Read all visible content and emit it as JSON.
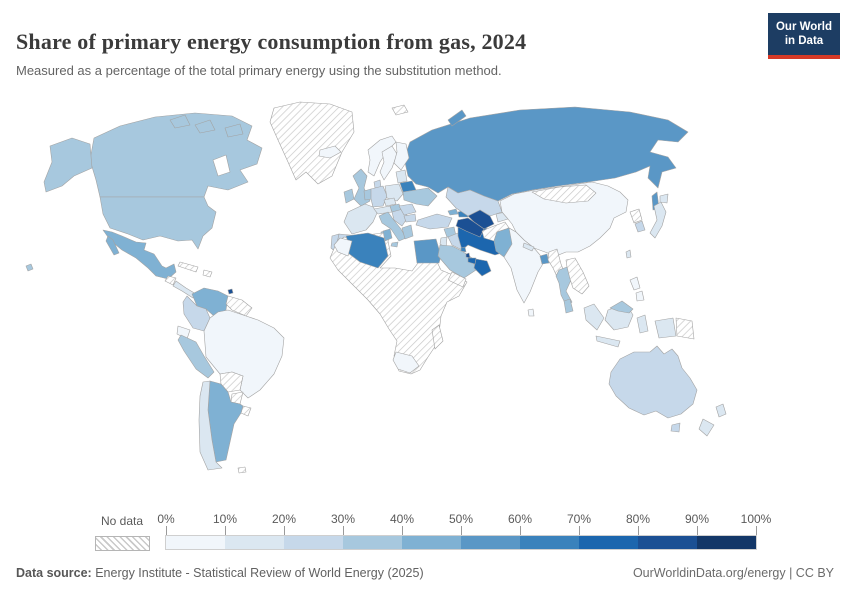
{
  "header": {
    "title": "Share of primary energy consumption from gas, 2024",
    "subtitle": "Measured as a percentage of the total primary energy using the substitution method.",
    "logo": {
      "line1": "Our World",
      "line2": "in Data",
      "bg_color": "#1d3d63",
      "accent_color": "#d73a27"
    }
  },
  "legend": {
    "no_data_label": "No data",
    "tick_labels": [
      "0%",
      "10%",
      "20%",
      "30%",
      "40%",
      "50%",
      "60%",
      "70%",
      "80%",
      "90%",
      "100%"
    ],
    "scale": [
      {
        "range": "0-10%",
        "color": "#f1f6fb"
      },
      {
        "range": "10-20%",
        "color": "#dbe7f1"
      },
      {
        "range": "20-30%",
        "color": "#c6d8ea"
      },
      {
        "range": "30-40%",
        "color": "#a7c8de"
      },
      {
        "range": "40-50%",
        "color": "#7fb1d3"
      },
      {
        "range": "50-60%",
        "color": "#5a97c6"
      },
      {
        "range": "60-70%",
        "color": "#3a82bc"
      },
      {
        "range": "70-80%",
        "color": "#1c66ae"
      },
      {
        "range": "80-90%",
        "color": "#1b5094"
      },
      {
        "range": "90-100%",
        "color": "#133768"
      }
    ]
  },
  "footer": {
    "data_source_label": "Data source:",
    "data_source": "Energy Institute - Statistical Review of World Energy (2025)",
    "link": "OurWorldinData.org/energy",
    "separator": "|",
    "license": "CC BY"
  },
  "chart_data": {
    "type": "heatmap",
    "subtype": "choropleth-world-map",
    "title": "Share of primary energy consumption from gas, 2024",
    "subtitle": "Measured as a percentage of the total primary energy using the substitution method.",
    "unit": "% of primary energy (substitution method)",
    "value_range": [
      0,
      100
    ],
    "legend_position": "bottom",
    "no_data_style": "diagonal-hatch",
    "countries": {
      "united-states": {
        "name": "United States",
        "range": "30-40%"
      },
      "canada": {
        "name": "Canada",
        "range": "30-40%"
      },
      "mexico": {
        "name": "Mexico",
        "range": "40-50%"
      },
      "greenland": {
        "name": "Greenland",
        "range": "No data"
      },
      "iceland": {
        "name": "Iceland",
        "range": "0-10%"
      },
      "central-america": {
        "name": "Costa Rica / Panama",
        "range": "10-20%"
      },
      "guatemala": {
        "name": "Guatemala",
        "range": "No data"
      },
      "cuba": {
        "name": "Cuba",
        "range": "No data"
      },
      "hispaniola": {
        "name": "Hispaniola",
        "range": "No data"
      },
      "trinidad-and-tobago": {
        "name": "Trinidad and Tobago",
        "range": "80-90%"
      },
      "venezuela": {
        "name": "Venezuela",
        "range": "40-50%"
      },
      "colombia": {
        "name": "Colombia",
        "range": "20-30%"
      },
      "guyanas": {
        "name": "Guyana / Suriname",
        "range": "No data"
      },
      "ecuador": {
        "name": "Ecuador",
        "range": "0-10%"
      },
      "peru": {
        "name": "Peru",
        "range": "30-40%"
      },
      "brazil": {
        "name": "Brazil",
        "range": "0-10%"
      },
      "bolivia": {
        "name": "Bolivia",
        "range": "No data"
      },
      "paraguay": {
        "name": "Paraguay",
        "range": "No data"
      },
      "uruguay": {
        "name": "Uruguay",
        "range": "No data"
      },
      "argentina": {
        "name": "Argentina",
        "range": "40-50%"
      },
      "chile": {
        "name": "Chile",
        "range": "10-20%"
      },
      "falkland-islands": {
        "name": "Falkland Islands",
        "range": "No data"
      },
      "norway": {
        "name": "Norway",
        "range": "0-10%"
      },
      "sweden": {
        "name": "Sweden",
        "range": "0-10%"
      },
      "finland": {
        "name": "Finland",
        "range": "0-10%"
      },
      "denmark": {
        "name": "Denmark",
        "range": "20-30%"
      },
      "united-kingdom": {
        "name": "United Kingdom",
        "range": "30-40%"
      },
      "ireland": {
        "name": "Ireland",
        "range": "30-40%"
      },
      "netherlands-belgium": {
        "name": "Netherlands / Belgium",
        "range": "30-40%"
      },
      "france": {
        "name": "France",
        "range": "10-20%"
      },
      "spain": {
        "name": "Spain",
        "range": "20-30%"
      },
      "portugal": {
        "name": "Portugal",
        "range": "20-30%"
      },
      "germany": {
        "name": "Germany",
        "range": "20-30%"
      },
      "poland": {
        "name": "Poland",
        "range": "10-20%"
      },
      "czechia": {
        "name": "Czechia",
        "range": "10-20%"
      },
      "austria-switzerland": {
        "name": "Austria / Switzerland",
        "range": "10-20%"
      },
      "italy": {
        "name": "Italy",
        "range": "30-40%"
      },
      "balkans": {
        "name": "Balkans",
        "range": "20-30%"
      },
      "hungary": {
        "name": "Hungary",
        "range": "30-40%"
      },
      "romania": {
        "name": "Romania",
        "range": "20-30%"
      },
      "bulgaria": {
        "name": "Bulgaria",
        "range": "20-30%"
      },
      "greece": {
        "name": "Greece",
        "range": "30-40%"
      },
      "baltic-states": {
        "name": "Baltic states",
        "range": "10-20%"
      },
      "belarus": {
        "name": "Belarus",
        "range": "60-70%"
      },
      "ukraine": {
        "name": "Ukraine",
        "range": "30-40%"
      },
      "russia": {
        "name": "Russia",
        "range": "50-60%"
      },
      "svalbard": {
        "name": "Svalbard",
        "range": "No data"
      },
      "turkey": {
        "name": "Turkey",
        "range": "20-30%"
      },
      "georgia": {
        "name": "Georgia",
        "range": "40-50%"
      },
      "azerbaijan": {
        "name": "Azerbaijan",
        "range": "60-70%"
      },
      "syria": {
        "name": "Syria",
        "range": "30-40%"
      },
      "israel-jordan": {
        "name": "Israel / Jordan",
        "range": "10-20%"
      },
      "iraq": {
        "name": "Iraq",
        "range": "20-30%"
      },
      "iran": {
        "name": "Iran",
        "range": "70-80%"
      },
      "saudi-arabia": {
        "name": "Saudi Arabia",
        "range": "30-40%"
      },
      "yemen": {
        "name": "Yemen",
        "range": "No data"
      },
      "oman": {
        "name": "Oman",
        "range": "70-80%"
      },
      "uae": {
        "name": "United Arab Emirates",
        "range": "70-80%"
      },
      "qatar": {
        "name": "Qatar",
        "range": "80-90%"
      },
      "kuwait": {
        "name": "Kuwait",
        "range": "60-70%"
      },
      "kazakhstan": {
        "name": "Kazakhstan",
        "range": "20-30%"
      },
      "uzbekistan": {
        "name": "Uzbekistan",
        "range": "80-90%"
      },
      "turkmenistan": {
        "name": "Turkmenistan",
        "range": "80-90%"
      },
      "kyrgyzstan": {
        "name": "Kyrgyzstan",
        "range": "10-20%"
      },
      "afghanistan": {
        "name": "Afghanistan",
        "range": "No data"
      },
      "pakistan": {
        "name": "Pakistan",
        "range": "40-50%"
      },
      "india": {
        "name": "India",
        "range": "0-10%"
      },
      "sri-lanka": {
        "name": "Sri Lanka",
        "range": "0-10%"
      },
      "nepal": {
        "name": "Nepal",
        "range": "10-20%"
      },
      "china": {
        "name": "China",
        "range": "0-10%"
      },
      "mongolia": {
        "name": "Mongolia",
        "range": "No data"
      },
      "bangladesh": {
        "name": "Bangladesh",
        "range": "50-60%"
      },
      "myanmar": {
        "name": "Myanmar",
        "range": "No data"
      },
      "thailand": {
        "name": "Thailand",
        "range": "30-40%"
      },
      "vietnam-laos-cambodia": {
        "name": "Vietnam / Laos / Cambodia",
        "range": "No data"
      },
      "malaysia": {
        "name": "Malaysia",
        "range": "30-40%"
      },
      "indonesia": {
        "name": "Indonesia",
        "range": "10-20%"
      },
      "philippines": {
        "name": "Philippines",
        "range": "0-10%"
      },
      "taiwan": {
        "name": "Taiwan",
        "range": "10-20%"
      },
      "north-korea": {
        "name": "North Korea",
        "range": "No data"
      },
      "south-korea": {
        "name": "South Korea",
        "range": "20-30%"
      },
      "japan": {
        "name": "Japan",
        "range": "10-20%"
      },
      "papua-new-guinea": {
        "name": "Papua New Guinea",
        "range": "No data"
      },
      "australia": {
        "name": "Australia",
        "range": "20-30%"
      },
      "new-zealand": {
        "name": "New Zealand",
        "range": "10-20%"
      },
      "africa-other": {
        "name": "Africa (no data region)",
        "range": "No data"
      },
      "morocco": {
        "name": "Morocco",
        "range": "0-10%"
      },
      "algeria": {
        "name": "Algeria",
        "range": "60-70%"
      },
      "tunisia": {
        "name": "Tunisia",
        "range": "40-50%"
      },
      "egypt": {
        "name": "Egypt",
        "range": "50-60%"
      },
      "south-africa": {
        "name": "South Africa",
        "range": "0-10%"
      },
      "madagascar": {
        "name": "Madagascar",
        "range": "No data"
      }
    }
  }
}
